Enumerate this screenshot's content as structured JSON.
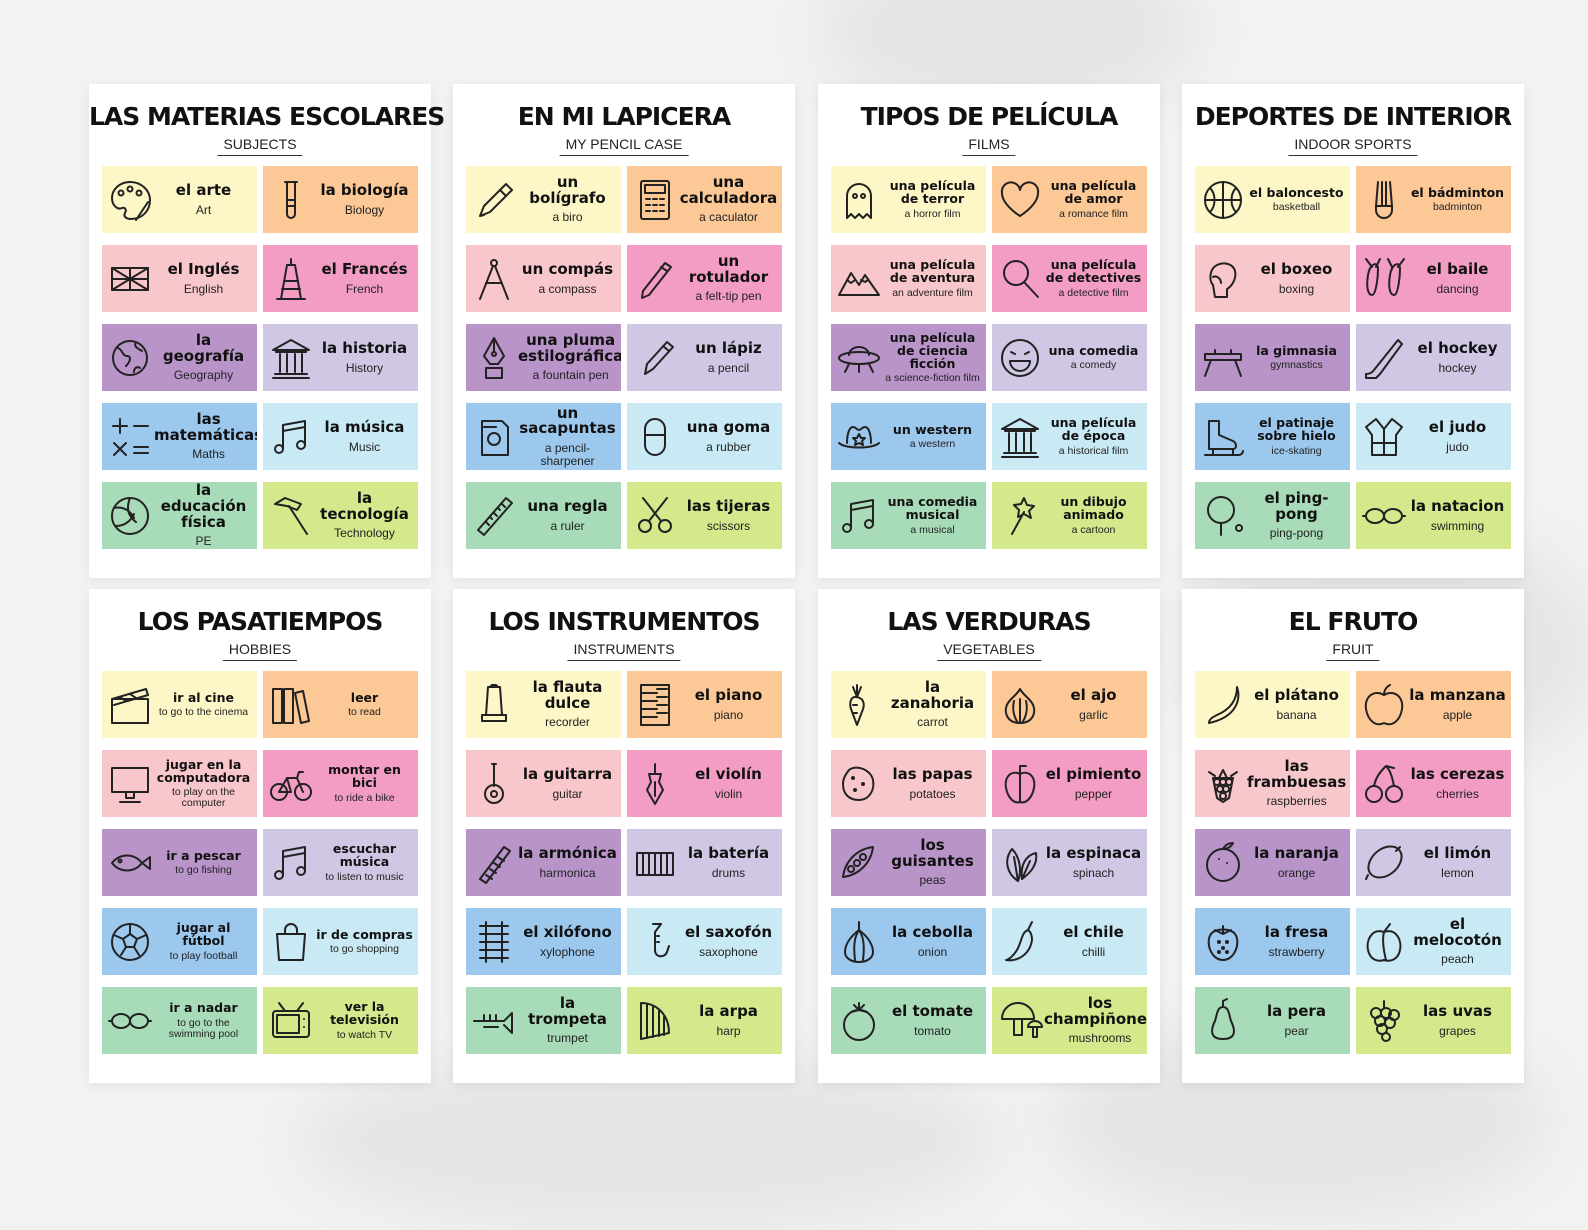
{
  "sheets": [
    {
      "title": "LAS MATERIAS ESCOLARES",
      "subtitle": "SUBJECTS",
      "cards": [
        {
          "es": "el arte",
          "en": "Art",
          "color": "yellow",
          "icon": "palette-icon"
        },
        {
          "es": "la biología",
          "en": "Biology",
          "color": "orange",
          "icon": "test-tube-icon"
        },
        {
          "es": "el Inglés",
          "en": "English",
          "color": "pink",
          "icon": "uk-flag-icon"
        },
        {
          "es": "el Francés",
          "en": "French",
          "color": "magenta",
          "icon": "eiffel-tower-icon"
        },
        {
          "es": "la geografía",
          "en": "Geography",
          "color": "purple",
          "icon": "globe-icon"
        },
        {
          "es": "la historia",
          "en": "History",
          "color": "lilac",
          "icon": "temple-icon"
        },
        {
          "es": "las matemáticas",
          "en": "Maths",
          "color": "blue",
          "icon": "math-symbols-icon"
        },
        {
          "es": "la música",
          "en": "Music",
          "color": "cyan",
          "icon": "music-notes-icon"
        },
        {
          "es": "la educación física",
          "en": "PE",
          "color": "green",
          "icon": "volleyball-icon"
        },
        {
          "es": "la tecnología",
          "en": "Technology",
          "color": "lime",
          "icon": "hammer-icon"
        }
      ]
    },
    {
      "title": "EN MI LAPICERA",
      "subtitle": "MY PENCIL CASE",
      "cards": [
        {
          "es": "un bolígrafo",
          "en": "a biro",
          "color": "yellow",
          "icon": "pen-icon"
        },
        {
          "es": "una calculadora",
          "en": "a caculator",
          "color": "orange",
          "icon": "calculator-icon"
        },
        {
          "es": "un compás",
          "en": "a compass",
          "color": "pink",
          "icon": "compass-icon"
        },
        {
          "es": "un rotulador",
          "en": "a felt-tip pen",
          "color": "magenta",
          "icon": "marker-icon"
        },
        {
          "es": "una pluma estilográfica",
          "en": "a fountain pen",
          "color": "purple",
          "icon": "fountain-pen-icon"
        },
        {
          "es": "un lápiz",
          "en": "a pencil",
          "color": "lilac",
          "icon": "pencil-icon"
        },
        {
          "es": "un sacapuntas",
          "en": "a pencil-sharpener",
          "color": "blue",
          "icon": "sharpener-icon"
        },
        {
          "es": "una goma",
          "en": "a rubber",
          "color": "cyan",
          "icon": "eraser-icon"
        },
        {
          "es": "una regla",
          "en": "a ruler",
          "color": "green",
          "icon": "ruler-icon"
        },
        {
          "es": "las tijeras",
          "en": "scissors",
          "color": "lime",
          "icon": "scissors-icon"
        }
      ]
    },
    {
      "title": "TIPOS DE PELÍCULA",
      "subtitle": "FILMS",
      "cards": [
        {
          "es": "una película de terror",
          "en": "a horror film",
          "color": "yellow",
          "icon": "ghost-icon",
          "small": true
        },
        {
          "es": "una película de amor",
          "en": "a romance film",
          "color": "orange",
          "icon": "heart-icon",
          "small": true
        },
        {
          "es": "una película de aventura",
          "en": "an adventure film",
          "color": "pink",
          "icon": "mountains-icon",
          "small": true
        },
        {
          "es": "una película de detectives",
          "en": "a detective film",
          "color": "magenta",
          "icon": "magnifier-icon",
          "small": true
        },
        {
          "es": "una película de ciencia ficción",
          "en": "a science-fiction film",
          "color": "purple",
          "icon": "ufo-icon",
          "small": true
        },
        {
          "es": "una comedia",
          "en": "a comedy",
          "color": "lilac",
          "icon": "laughing-face-icon",
          "small": true
        },
        {
          "es": "un western",
          "en": "a western",
          "color": "blue",
          "icon": "cowboy-hat-icon",
          "small": true
        },
        {
          "es": "una película de época",
          "en": "a historical film",
          "color": "cyan",
          "icon": "temple-icon",
          "small": true
        },
        {
          "es": "una comedia musical",
          "en": "a musical",
          "color": "green",
          "icon": "music-notes-icon",
          "small": true
        },
        {
          "es": "un dibujo animado",
          "en": "a cartoon",
          "color": "lime",
          "icon": "magic-wand-icon",
          "small": true
        }
      ]
    },
    {
      "title": "DEPORTES DE INTERIOR",
      "subtitle": "INDOOR SPORTS",
      "cards": [
        {
          "es": "el baloncesto",
          "en": "basketball",
          "color": "yellow",
          "icon": "basketball-icon",
          "small": true
        },
        {
          "es": "el bádminton",
          "en": "badminton",
          "color": "orange",
          "icon": "shuttlecock-icon",
          "small": true
        },
        {
          "es": "el boxeo",
          "en": "boxing",
          "color": "pink",
          "icon": "boxing-glove-icon"
        },
        {
          "es": "el baile",
          "en": "dancing",
          "color": "magenta",
          "icon": "ballet-shoes-icon"
        },
        {
          "es": "la gimnasia",
          "en": "gymnastics",
          "color": "purple",
          "icon": "pommel-horse-icon",
          "small": true
        },
        {
          "es": "el hockey",
          "en": "hockey",
          "color": "lilac",
          "icon": "hockey-stick-icon"
        },
        {
          "es": "el patinaje sobre hielo",
          "en": "ice-skating",
          "color": "blue",
          "icon": "ice-skate-icon",
          "small": true
        },
        {
          "es": "el judo",
          "en": "judo",
          "color": "cyan",
          "icon": "judo-gi-icon"
        },
        {
          "es": "el ping-pong",
          "en": "ping-pong",
          "color": "green",
          "icon": "ping-pong-icon"
        },
        {
          "es": "la natacion",
          "en": "swimming",
          "color": "lime",
          "icon": "goggles-icon"
        }
      ]
    },
    {
      "title": "LOS PASATIEMPOS",
      "subtitle": "HOBBIES",
      "cards": [
        {
          "es": "ir al cine",
          "en": "to go to the cinema",
          "color": "yellow",
          "icon": "clapperboard-icon",
          "small": true
        },
        {
          "es": "leer",
          "en": "to read",
          "color": "orange",
          "icon": "books-icon",
          "small": true
        },
        {
          "es": "jugar en la computadora",
          "en": "to play on the computer",
          "color": "pink",
          "icon": "computer-icon",
          "small": true
        },
        {
          "es": "montar en bici",
          "en": "to ride a bike",
          "color": "magenta",
          "icon": "bicycle-icon",
          "small": true
        },
        {
          "es": "ir a pescar",
          "en": "to go fishing",
          "color": "purple",
          "icon": "fish-icon",
          "small": true
        },
        {
          "es": "escuchar música",
          "en": "to listen to music",
          "color": "lilac",
          "icon": "music-notes-icon",
          "small": true
        },
        {
          "es": "jugar al fútbol",
          "en": "to play football",
          "color": "blue",
          "icon": "soccer-ball-icon",
          "small": true
        },
        {
          "es": "ir de compras",
          "en": "to go shopping",
          "color": "cyan",
          "icon": "shopping-bag-icon",
          "small": true
        },
        {
          "es": "ir a nadar",
          "en": "to go to the swimming pool",
          "color": "green",
          "icon": "goggles-icon",
          "small": true
        },
        {
          "es": "ver la televisión",
          "en": "to watch TV",
          "color": "lime",
          "icon": "tv-icon",
          "small": true
        }
      ]
    },
    {
      "title": "LOS INSTRUMENTOS",
      "subtitle": "INSTRUMENTS",
      "cards": [
        {
          "es": "la flauta dulce",
          "en": "recorder",
          "color": "yellow",
          "icon": "recorder-icon"
        },
        {
          "es": "el piano",
          "en": "piano",
          "color": "orange",
          "icon": "piano-icon"
        },
        {
          "es": "la guitarra",
          "en": "guitar",
          "color": "pink",
          "icon": "guitar-icon"
        },
        {
          "es": "el violín",
          "en": "violin",
          "color": "magenta",
          "icon": "violin-icon"
        },
        {
          "es": "la armónica",
          "en": "harmonica",
          "color": "purple",
          "icon": "harmonica-icon"
        },
        {
          "es": "la batería",
          "en": "drums",
          "color": "lilac",
          "icon": "drums-icon"
        },
        {
          "es": "el xilófono",
          "en": "xylophone",
          "color": "blue",
          "icon": "xylophone-icon"
        },
        {
          "es": "el saxofón",
          "en": "saxophone",
          "color": "cyan",
          "icon": "saxophone-icon"
        },
        {
          "es": "la trompeta",
          "en": "trumpet",
          "color": "green",
          "icon": "trumpet-icon"
        },
        {
          "es": "la arpa",
          "en": "harp",
          "color": "lime",
          "icon": "harp-icon"
        }
      ]
    },
    {
      "title": "LAS VERDURAS",
      "subtitle": "VEGETABLES",
      "cards": [
        {
          "es": "la zanahoria",
          "en": "carrot",
          "color": "yellow",
          "icon": "carrot-icon"
        },
        {
          "es": "el ajo",
          "en": "garlic",
          "color": "orange",
          "icon": "garlic-icon"
        },
        {
          "es": "las papas",
          "en": "potatoes",
          "color": "pink",
          "icon": "potato-icon"
        },
        {
          "es": "el pimiento",
          "en": "pepper",
          "color": "magenta",
          "icon": "bell-pepper-icon"
        },
        {
          "es": "los guisantes",
          "en": "peas",
          "color": "purple",
          "icon": "peas-icon"
        },
        {
          "es": "la espinaca",
          "en": "spinach",
          "color": "lilac",
          "icon": "spinach-icon"
        },
        {
          "es": "la cebolla",
          "en": "onion",
          "color": "blue",
          "icon": "onion-icon"
        },
        {
          "es": "el chile",
          "en": "chilli",
          "color": "cyan",
          "icon": "chilli-icon"
        },
        {
          "es": "el tomate",
          "en": "tomato",
          "color": "green",
          "icon": "tomato-icon"
        },
        {
          "es": "los champiñones",
          "en": "mushrooms",
          "color": "lime",
          "icon": "mushroom-icon"
        }
      ]
    },
    {
      "title": "EL FRUTO",
      "subtitle": "FRUIT",
      "cards": [
        {
          "es": "el plátano",
          "en": "banana",
          "color": "yellow",
          "icon": "banana-icon"
        },
        {
          "es": "la manzana",
          "en": "apple",
          "color": "orange",
          "icon": "apple-icon"
        },
        {
          "es": "las frambuesas",
          "en": "raspberries",
          "color": "pink",
          "icon": "raspberry-icon"
        },
        {
          "es": "las cerezas",
          "en": "cherries",
          "color": "magenta",
          "icon": "cherries-icon"
        },
        {
          "es": "la naranja",
          "en": "orange",
          "color": "purple",
          "icon": "orange-fruit-icon"
        },
        {
          "es": "el limón",
          "en": "lemon",
          "color": "lilac",
          "icon": "lemon-icon"
        },
        {
          "es": "la fresa",
          "en": "strawberry",
          "color": "blue",
          "icon": "strawberry-icon"
        },
        {
          "es": "el melocotón",
          "en": "peach",
          "color": "cyan",
          "icon": "peach-icon"
        },
        {
          "es": "la pera",
          "en": "pear",
          "color": "green",
          "icon": "pear-icon"
        },
        {
          "es": "las uvas",
          "en": "grapes",
          "color": "lime",
          "icon": "grapes-icon"
        }
      ]
    }
  ]
}
